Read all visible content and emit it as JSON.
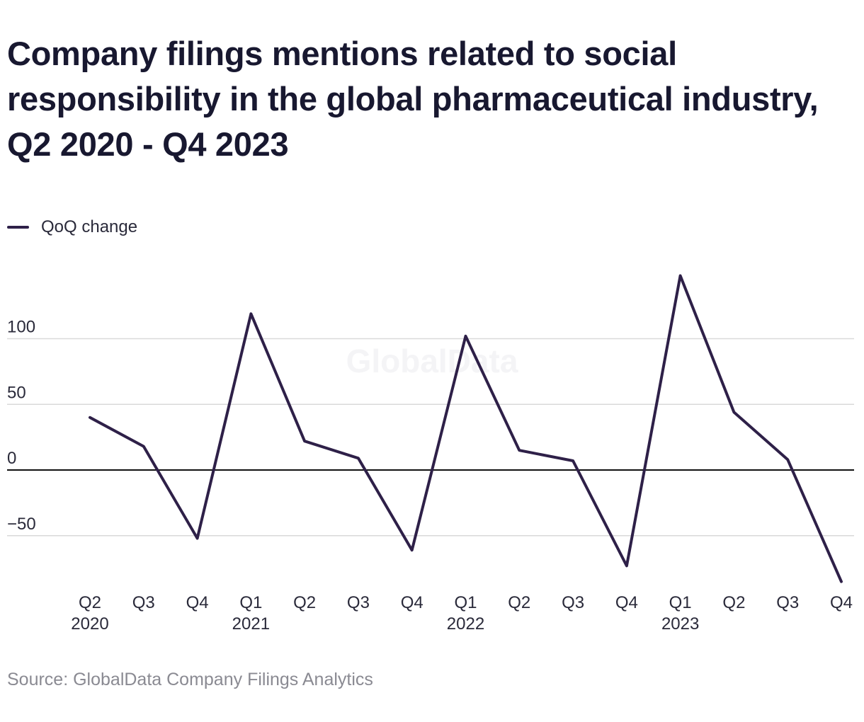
{
  "title": "Company filings mentions related to social responsibility in the global pharmaceutical industry, Q2 2020 - Q4 2023",
  "source": "Source: GlobalData Company Filings Analytics",
  "watermark": "GlobalData",
  "colors": {
    "line": "#2e2048",
    "grid": "#d9d9d9",
    "zero": "#111111"
  },
  "chart_data": {
    "type": "line",
    "legend_position": "top-left",
    "grid": true,
    "ylim": [
      -85,
      150
    ],
    "y_ticks": [
      100,
      50,
      0,
      -50
    ],
    "y_tick_labels": [
      "100",
      "50",
      "0",
      "−50"
    ],
    "x_labels": [
      {
        "quarter": "Q2",
        "year": "2020"
      },
      {
        "quarter": "Q3",
        "year": ""
      },
      {
        "quarter": "Q4",
        "year": ""
      },
      {
        "quarter": "Q1",
        "year": "2021"
      },
      {
        "quarter": "Q2",
        "year": ""
      },
      {
        "quarter": "Q3",
        "year": ""
      },
      {
        "quarter": "Q4",
        "year": ""
      },
      {
        "quarter": "Q1",
        "year": "2022"
      },
      {
        "quarter": "Q2",
        "year": ""
      },
      {
        "quarter": "Q3",
        "year": ""
      },
      {
        "quarter": "Q4",
        "year": ""
      },
      {
        "quarter": "Q1",
        "year": "2023"
      },
      {
        "quarter": "Q2",
        "year": ""
      },
      {
        "quarter": "Q3",
        "year": ""
      },
      {
        "quarter": "Q4",
        "year": ""
      }
    ],
    "series": [
      {
        "name": "QoQ change",
        "values": [
          40,
          18,
          -52,
          119,
          22,
          9,
          -61,
          102,
          15,
          7,
          -73,
          148,
          44,
          8,
          -85
        ]
      }
    ]
  }
}
